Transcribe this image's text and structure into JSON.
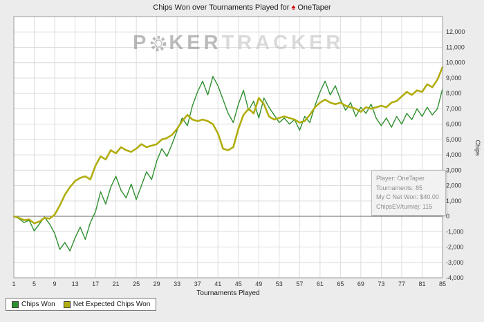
{
  "title": {
    "text": "Chips Won over Tournaments Played for",
    "suit": "♠",
    "suit_color": "#cc0000",
    "player": "OneTaper"
  },
  "watermark": {
    "part1": "P",
    "part2": "KER",
    "part3": "TRACKER"
  },
  "tooltip": {
    "lines": [
      "Player: OneTaper",
      "Tournaments: 85",
      "My C Net Won: $40.00",
      "ChipsEV/turniej: 115"
    ]
  },
  "chart_data": {
    "type": "line",
    "title": "Chips Won over Tournaments Played for OneTaper",
    "xlabel": "Tournaments Played",
    "ylabel": "Chips",
    "xlim": [
      1,
      85
    ],
    "ylim": [
      -4000,
      13000
    ],
    "y_grid": [
      -4000,
      12000,
      1000
    ],
    "x_ticks": [
      1,
      5,
      9,
      13,
      17,
      21,
      25,
      29,
      33,
      37,
      41,
      45,
      49,
      53,
      57,
      61,
      65,
      69,
      73,
      77,
      81,
      85
    ],
    "grid": true,
    "legend_position": "bottom-left",
    "series": [
      {
        "name": "Chips Won",
        "slug": "chips-won",
        "color": "#2f8f2f",
        "width": 1.4,
        "values": [
          0,
          -150,
          -400,
          -250,
          -950,
          -500,
          -50,
          -500,
          -1100,
          -2150,
          -1700,
          -2250,
          -1400,
          -700,
          -1500,
          -400,
          300,
          1600,
          800,
          1900,
          2600,
          1700,
          1200,
          2100,
          1100,
          2000,
          2900,
          2400,
          3600,
          4400,
          3900,
          4700,
          5600,
          6400,
          5900,
          7200,
          8100,
          8800,
          7900,
          9100,
          8500,
          7600,
          6700,
          6100,
          7300,
          8200,
          6900,
          7500,
          6400,
          7700,
          7100,
          6600,
          6100,
          6400,
          6000,
          6300,
          5600,
          6500,
          6100,
          7200,
          8100,
          8800,
          7900,
          8500,
          7600,
          6900,
          7400,
          6500,
          7100,
          6700,
          7300,
          6400,
          5900,
          6400,
          5800,
          6500,
          6000,
          6700,
          6300,
          7000,
          6500,
          7100,
          6600,
          7000,
          8300
        ]
      },
      {
        "name": "Net Expected Chips Won",
        "slug": "net-expected-chips-won",
        "color": "#b1ad0e",
        "width": 2.6,
        "values": [
          0,
          -100,
          -250,
          -200,
          -450,
          -350,
          -100,
          -150,
          100,
          700,
          1400,
          1900,
          2300,
          2500,
          2600,
          2400,
          3300,
          3900,
          3700,
          4300,
          4100,
          4500,
          4300,
          4200,
          4400,
          4700,
          4500,
          4600,
          4700,
          5000,
          5100,
          5300,
          5700,
          6200,
          6600,
          6300,
          6200,
          6300,
          6200,
          6000,
          5400,
          4400,
          4300,
          4500,
          5700,
          6600,
          7000,
          6700,
          7700,
          7300,
          6500,
          6300,
          6400,
          6500,
          6400,
          6300,
          6100,
          6200,
          6600,
          7100,
          7400,
          7600,
          7400,
          7300,
          7400,
          7200,
          7100,
          7000,
          6800,
          7100,
          7000,
          7100,
          7200,
          7100,
          7400,
          7500,
          7800,
          8100,
          7900,
          8200,
          8100,
          8600,
          8400,
          8900,
          9700
        ]
      }
    ]
  }
}
